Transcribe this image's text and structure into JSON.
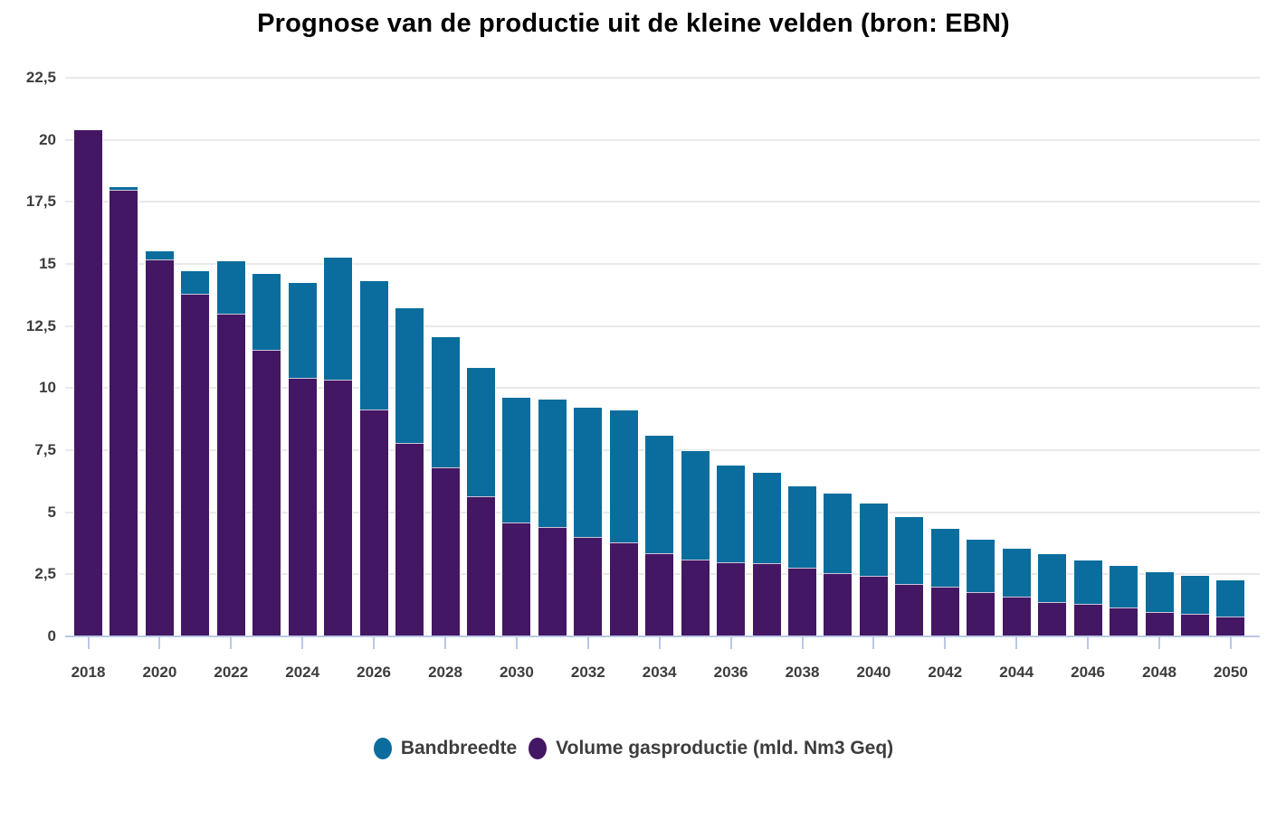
{
  "title": "Prognose van de productie uit de kleine velden (bron: EBN)",
  "legend": [
    {
      "label": "Bandbreedte",
      "color": "#0a6d9d"
    },
    {
      "label": "Volume gasproductie (mld. Nm3 Geq)",
      "color": "#431763"
    }
  ],
  "colors": {
    "background": "#ffffff",
    "gridline": "#e9e9e9",
    "axis_line": "#bac7e6",
    "axis_label": "#3d3d3d",
    "title": "#000000",
    "bar_volume": "#431763",
    "bar_bandbreedte": "#0a6d9d"
  },
  "chart_data": {
    "type": "bar",
    "stacked": true,
    "title": "Prognose van de productie uit de kleine velden (bron: EBN)",
    "xlabel": "",
    "ylabel": "",
    "ylim": [
      0,
      22.5
    ],
    "grid": true,
    "legend_position": "bottom",
    "categories": [
      "2018",
      "2019",
      "2020",
      "2021",
      "2022",
      "2023",
      "2024",
      "2025",
      "2026",
      "2027",
      "2028",
      "2029",
      "2030",
      "2031",
      "2032",
      "2033",
      "2034",
      "2035",
      "2036",
      "2037",
      "2038",
      "2039",
      "2040",
      "2041",
      "2042",
      "2043",
      "2044",
      "2045",
      "2046",
      "2047",
      "2048",
      "2049",
      "2050"
    ],
    "xtick_labels": [
      "2018",
      "2020",
      "2022",
      "2024",
      "2026",
      "2028",
      "2030",
      "2032",
      "2034",
      "2036",
      "2038",
      "2040",
      "2042",
      "2044",
      "2046",
      "2048",
      "2050"
    ],
    "yticks": [
      {
        "value": 0,
        "label": "0"
      },
      {
        "value": 2.5,
        "label": "2,5"
      },
      {
        "value": 5,
        "label": "5"
      },
      {
        "value": 7.5,
        "label": "7,5"
      },
      {
        "value": 10,
        "label": "10"
      },
      {
        "value": 12.5,
        "label": "12,5"
      },
      {
        "value": 15,
        "label": "15"
      },
      {
        "value": 17.5,
        "label": "17,5"
      },
      {
        "value": 20,
        "label": "20"
      },
      {
        "value": 22.5,
        "label": "22,5"
      }
    ],
    "series": [
      {
        "name": "Volume gasproductie (mld. Nm3 Geq)",
        "color": "#431763",
        "values": [
          20.4,
          18.0,
          15.2,
          13.8,
          13.0,
          11.55,
          10.4,
          10.35,
          9.15,
          7.8,
          6.8,
          5.65,
          4.6,
          4.4,
          4.0,
          3.8,
          3.35,
          3.1,
          3.0,
          2.95,
          2.75,
          2.55,
          2.45,
          2.1,
          2.0,
          1.8,
          1.6,
          1.4,
          1.3,
          1.15,
          1.0,
          0.9,
          0.8
        ]
      },
      {
        "name": "Bandbreedte",
        "color": "#0a6d9d",
        "values": [
          0,
          0.1,
          0.3,
          0.9,
          2.1,
          3.05,
          3.85,
          4.9,
          5.15,
          5.4,
          5.25,
          5.15,
          5.0,
          5.15,
          5.2,
          5.3,
          4.75,
          4.35,
          3.9,
          3.65,
          3.3,
          3.2,
          2.9,
          2.7,
          2.35,
          2.1,
          1.95,
          1.9,
          1.75,
          1.7,
          1.6,
          1.55,
          1.45
        ]
      }
    ],
    "totals": [
      20.4,
      18.1,
      15.5,
      14.7,
      15.1,
      14.6,
      14.25,
      15.25,
      14.3,
      13.2,
      12.05,
      10.8,
      9.6,
      9.55,
      9.2,
      9.1,
      8.1,
      7.45,
      6.9,
      6.6,
      6.05,
      5.75,
      5.35,
      4.8,
      4.35,
      3.9,
      3.55,
      3.3,
      3.05,
      2.85,
      2.6,
      2.45,
      2.25
    ]
  }
}
